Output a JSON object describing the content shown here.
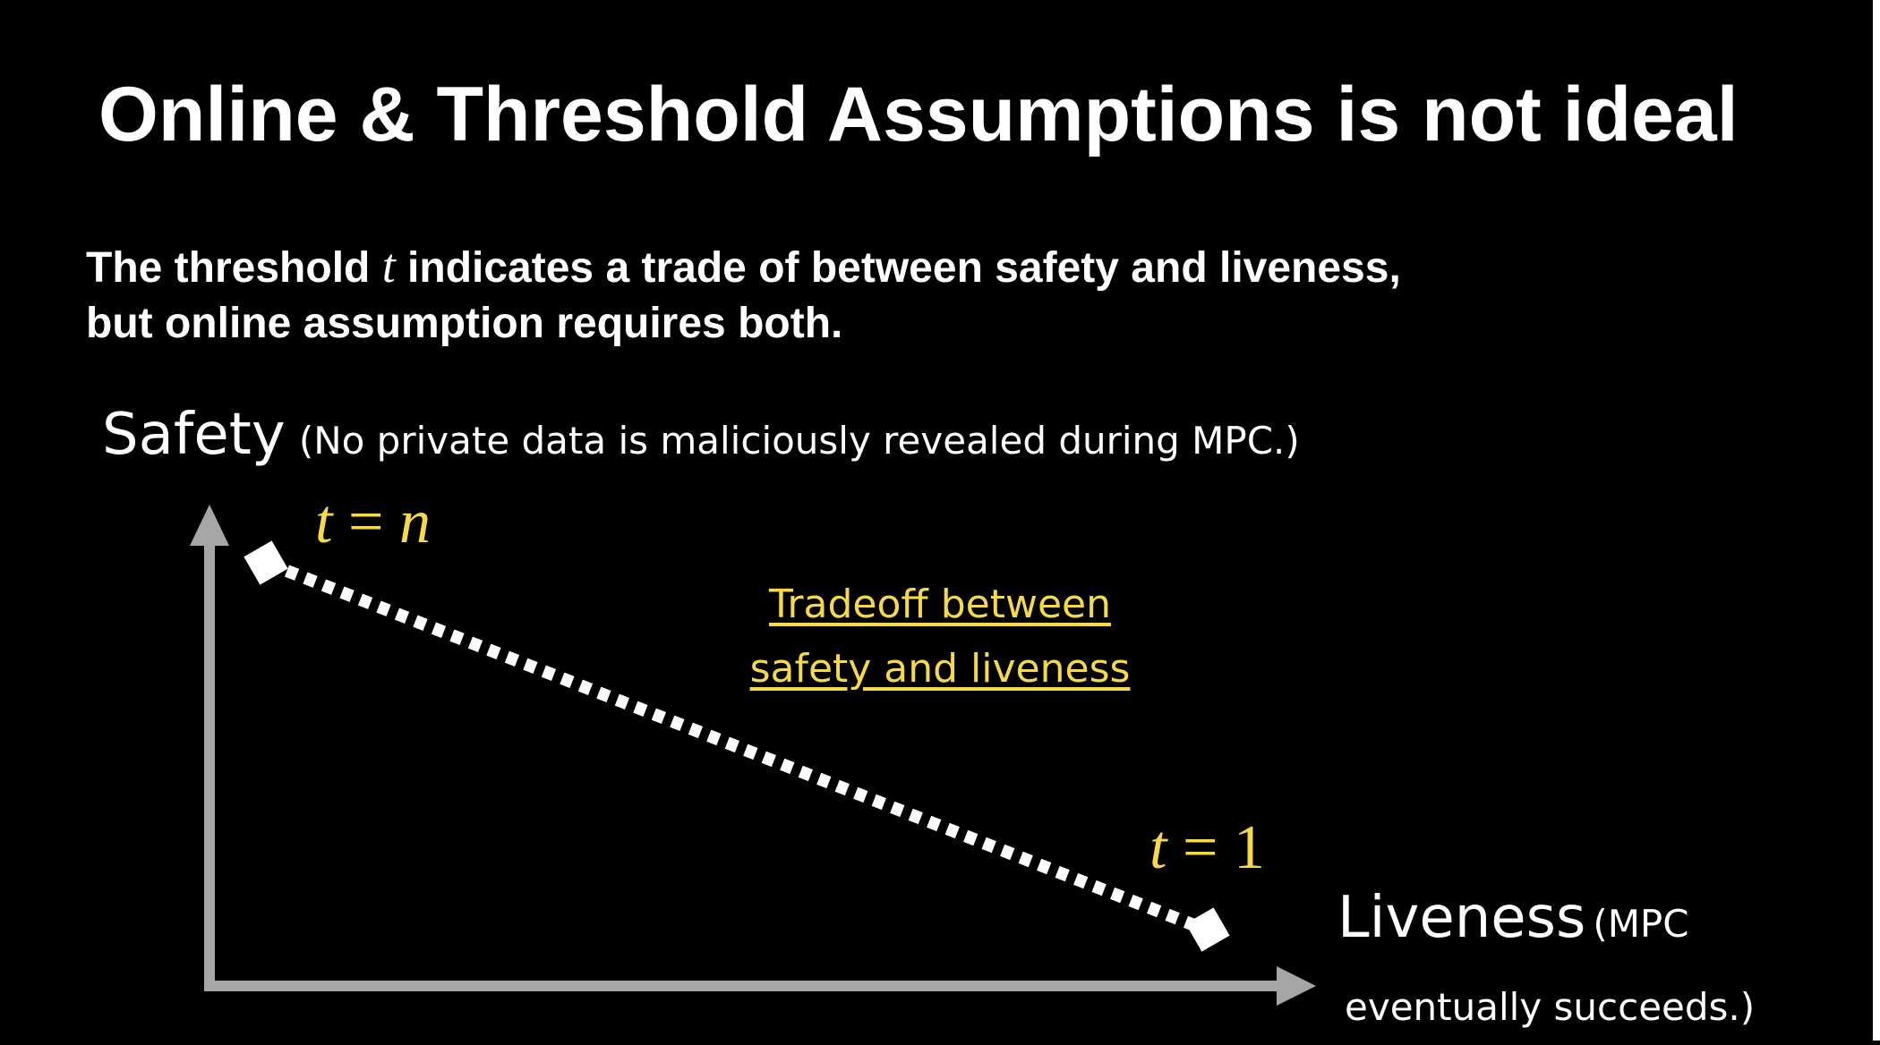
{
  "slide": {
    "title": "Online & Threshold Assumptions is not ideal",
    "subtitle": {
      "line1_before": "The threshold ",
      "line1_var": "t",
      "line1_after": " indicates a trade of between safety and liveness,",
      "line2": "but online assumption requires both."
    }
  },
  "diagram": {
    "y_axis": {
      "label": "Safety",
      "note": "(No private data is maliciously revealed during MPC.)"
    },
    "x_axis": {
      "label": "Liveness",
      "note_line1": "(MPC",
      "note_line2": "eventually succeeds.)"
    },
    "points": {
      "top": {
        "var": "t",
        "eq": " = ",
        "val": "n"
      },
      "bottom": {
        "var": "t",
        "eq": " = ",
        "val": "1"
      }
    },
    "tradeoff_line1": "Tradeoff between",
    "tradeoff_line2": "safety and liveness",
    "colors": {
      "background": "#000000",
      "text": "#ffffff",
      "accent": "#f5d94a",
      "axis": "#a6a6a6"
    }
  }
}
